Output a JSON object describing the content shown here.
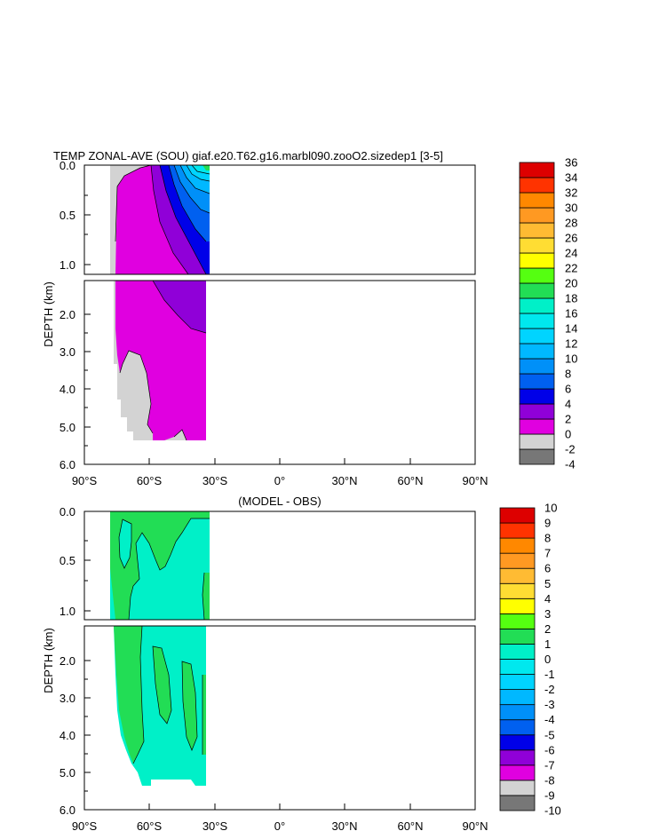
{
  "chart_data": [
    {
      "type": "heatmap",
      "title": "TEMP ZONAL-AVE (SOU) giaf.e20.T62.g16.marbl090.zooO2.sizedep1 [3-5]",
      "ylabel": "DEPTH (km)",
      "xlim": [
        -90,
        90
      ],
      "ylim": [
        6.0,
        0.0
      ],
      "x_ticks": [
        "90°S",
        "60°S",
        "30°S",
        "0°",
        "30°N",
        "60°N",
        "90°N"
      ],
      "y_ticks_upper": [
        "0.0",
        "0.5",
        "1.0"
      ],
      "y_ticks_lower": [
        "2.0",
        "3.0",
        "4.0",
        "5.0",
        "6.0"
      ],
      "data_extent": {
        "lat": [
          -78,
          -34
        ],
        "max_depth_km": 5.4
      },
      "colorbar": {
        "levels": [
          "-4",
          "-2",
          "0",
          "2",
          "4",
          "6",
          "8",
          "10",
          "12",
          "14",
          "16",
          "18",
          "20",
          "22",
          "24",
          "26",
          "28",
          "30",
          "32",
          "34",
          "36"
        ],
        "colors": [
          "#777777",
          "#d3d3d3",
          "#e000e0",
          "#9000d8",
          "#0000e8",
          "#0060f0",
          "#0090f8",
          "#00b8ff",
          "#00d4ff",
          "#00e8ee",
          "#00f0c8",
          "#22dd55",
          "#55ff11",
          "#ffff00",
          "#ffdd33",
          "#ffbb33",
          "#ff9922",
          "#ff8800",
          "#ff3300",
          "#dd0000"
        ]
      }
    },
    {
      "type": "heatmap",
      "title": "(MODEL - OBS)",
      "ylabel": "DEPTH (km)",
      "xlim": [
        -90,
        90
      ],
      "ylim": [
        6.0,
        0.0
      ],
      "x_ticks": [
        "90°S",
        "60°S",
        "30°S",
        "0°",
        "30°N",
        "60°N",
        "90°N"
      ],
      "y_ticks_upper": [
        "0.0",
        "0.5",
        "1.0"
      ],
      "y_ticks_lower": [
        "2.0",
        "3.0",
        "4.0",
        "5.0",
        "6.0"
      ],
      "data_extent": {
        "lat": [
          -78,
          -34
        ],
        "max_depth_km": 5.4
      },
      "colorbar": {
        "levels": [
          "-10",
          "-9",
          "-8",
          "-7",
          "-6",
          "-5",
          "-4",
          "-3",
          "-2",
          "-1",
          "0",
          "1",
          "2",
          "3",
          "4",
          "5",
          "6",
          "7",
          "8",
          "9",
          "10"
        ],
        "colors": [
          "#777777",
          "#d3d3d3",
          "#e000e0",
          "#9000d8",
          "#0000e8",
          "#0060f0",
          "#0090f8",
          "#00b8ff",
          "#00d4ff",
          "#00e8ee",
          "#00f0c8",
          "#22dd55",
          "#55ff11",
          "#ffff00",
          "#ffdd33",
          "#ffbb33",
          "#ff9922",
          "#ff8800",
          "#ff3300",
          "#dd0000"
        ]
      }
    }
  ]
}
